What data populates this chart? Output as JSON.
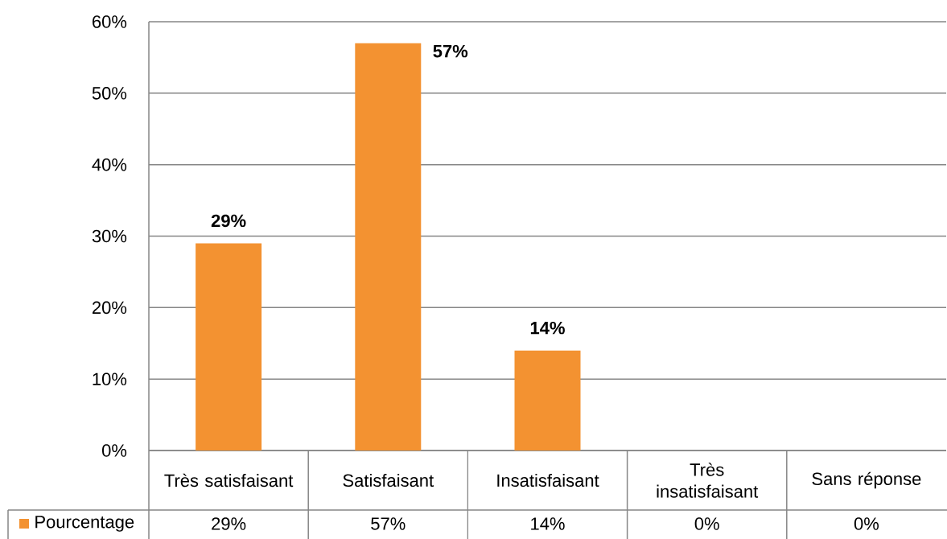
{
  "chart_data": {
    "type": "bar",
    "categories": [
      "Très satisfaisant",
      "Satisfaisant",
      "Insatisfaisant",
      "Très insatisfaisant",
      "Sans réponse"
    ],
    "series": [
      {
        "name": "Pourcentage",
        "color": "#f39231",
        "values": [
          29,
          57,
          14,
          0,
          0
        ],
        "value_labels": [
          "29%",
          "57%",
          "14%",
          "0%",
          "0%"
        ]
      }
    ],
    "ylim": [
      0,
      60
    ],
    "yticks": [
      {
        "value": 0,
        "label": "0%"
      },
      {
        "value": 10,
        "label": "10%"
      },
      {
        "value": 20,
        "label": "20%"
      },
      {
        "value": 30,
        "label": "30%"
      },
      {
        "value": 40,
        "label": "40%"
      },
      {
        "value": 50,
        "label": "50%"
      },
      {
        "value": 60,
        "label": "60%"
      }
    ],
    "grid": "y",
    "legend": "bottom left"
  }
}
